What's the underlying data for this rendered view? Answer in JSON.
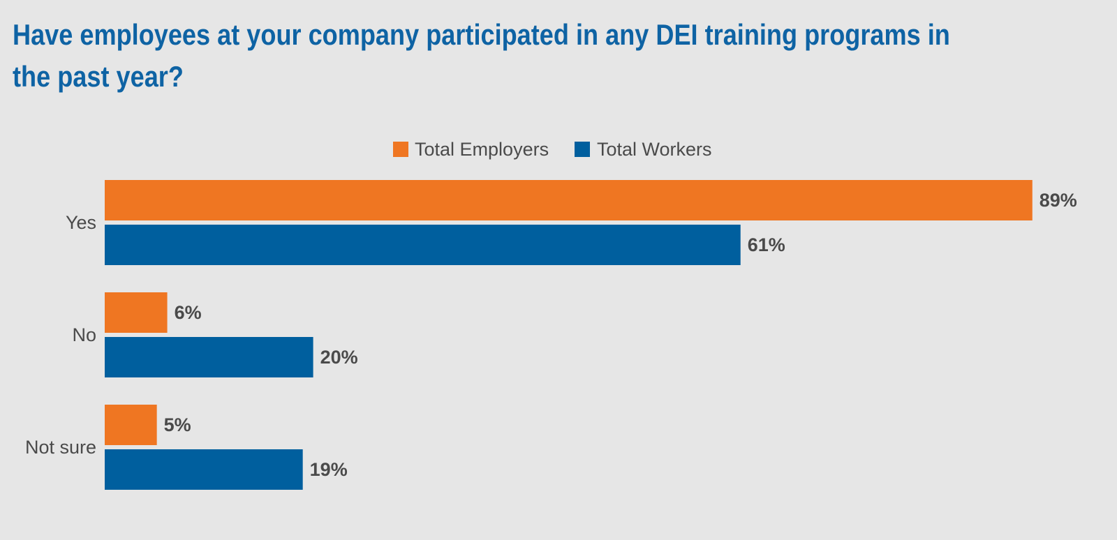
{
  "chart_data": {
    "type": "bar",
    "orientation": "horizontal",
    "title": "Have employees at your company participated in any DEI training programs in the past year?",
    "categories": [
      "Yes",
      "No",
      "Not sure"
    ],
    "series": [
      {
        "name": "Total Employers",
        "color": "#ef7622",
        "values": [
          89,
          6,
          5
        ],
        "labels": [
          "89%",
          "6%",
          "5%"
        ]
      },
      {
        "name": "Total Workers",
        "color": "#005f9e",
        "values": [
          61,
          20,
          19
        ],
        "labels": [
          "61%",
          "20%",
          "19%"
        ]
      }
    ],
    "legend": {
      "placement": "top-center"
    },
    "grid": false
  }
}
